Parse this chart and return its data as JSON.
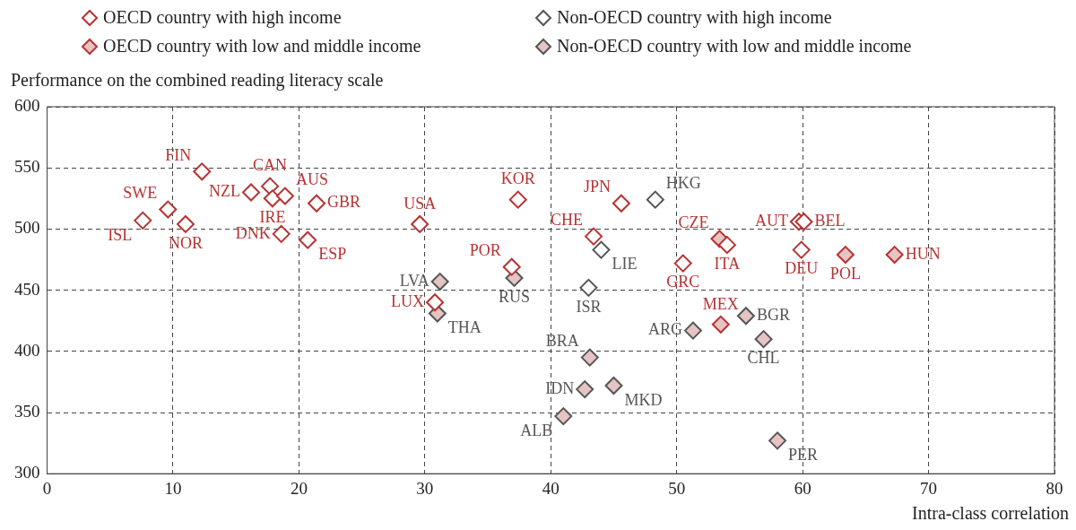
{
  "chart_data": {
    "type": "scatter",
    "xlabel": "Intra-class correlation",
    "ylabel": "Performance on the combined reading literacy scale",
    "xlim": [
      0,
      80
    ],
    "xticks": [
      0,
      10,
      20,
      30,
      40,
      50,
      60,
      70,
      80
    ],
    "ylim": [
      300,
      600
    ],
    "yticks": [
      300,
      350,
      400,
      450,
      500,
      550,
      600
    ],
    "grid": true,
    "legend": "top",
    "marker": "diamond",
    "series": [
      {
        "name": "OECD country with high income",
        "color": "#b83232",
        "x": [
          12.3,
          9.6,
          7.6,
          11.0,
          16.2,
          17.7,
          17.9,
          18.9,
          21.4,
          18.6,
          20.7,
          29.6,
          37.4,
          45.6,
          43.4,
          36.9,
          30.8,
          50.5,
          54.0,
          59.7,
          60.1,
          59.9
        ],
        "values": [
          547,
          516,
          507,
          504,
          530,
          535,
          525,
          527,
          521,
          496,
          491,
          504,
          524,
          521,
          494,
          469,
          440,
          472,
          487,
          506,
          506,
          483
        ],
        "value_labels": [
          "FIN",
          "SWE",
          "ISL",
          "NOR",
          "NZL",
          "CAN",
          "IRE",
          "AUS",
          "GBR",
          "DNK",
          "ESP",
          "USA",
          "KOR",
          "JPN",
          "CHE",
          "POR",
          "LUX",
          "GRC",
          "ITA",
          "AUT",
          "BEL",
          "DEU"
        ]
      },
      {
        "name": "Non-OECD country with high income",
        "color": "#555555",
        "x": [
          48.3,
          44.0,
          43.0
        ],
        "values": [
          524,
          483,
          452
        ],
        "value_labels": [
          "HKG",
          "LIE",
          "ISR"
        ]
      },
      {
        "name": "OECD country with low and middle income",
        "color": "#b83232",
        "x": [
          53.4,
          63.4,
          67.3,
          53.5
        ],
        "values": [
          492,
          479,
          479,
          422
        ],
        "value_labels": [
          "CZE",
          "POL",
          "HUN",
          "MEX"
        ]
      },
      {
        "name": "Non-OECD country with low and middle income",
        "color": "#555555",
        "x": [
          31.2,
          37.1,
          31.0,
          43.1,
          42.7,
          45.0,
          41.0,
          51.3,
          55.5,
          56.9,
          58.0
        ],
        "values": [
          457,
          460,
          431,
          395,
          369,
          372,
          347,
          417,
          429,
          410,
          327
        ],
        "value_labels": [
          "LVA",
          "RUS",
          "THA",
          "BRA",
          "IDN",
          "MKD",
          "ALB",
          "ARG",
          "BGR",
          "CHL",
          "PER"
        ]
      }
    ]
  }
}
